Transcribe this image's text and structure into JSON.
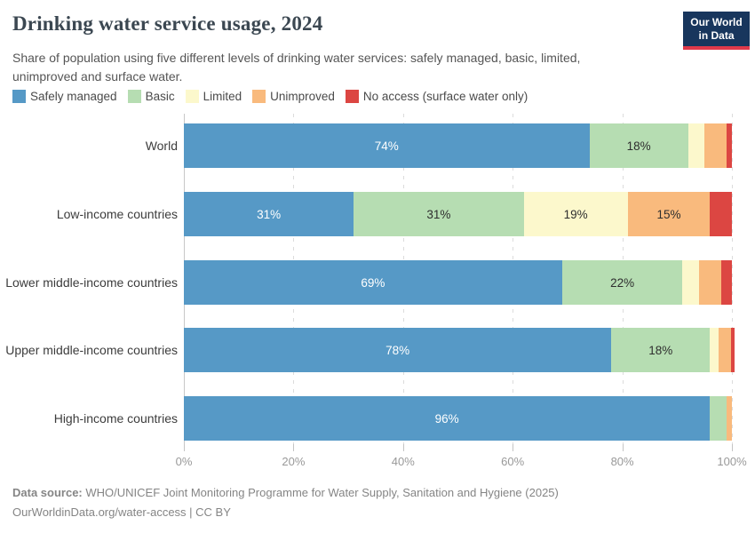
{
  "header": {
    "title": "Drinking water service usage, 2024",
    "subtitle": "Share of population using five different levels of drinking water services: safely managed, basic, limited, unimproved and surface water.",
    "logo": {
      "line1": "Our World",
      "line2": "in Data"
    }
  },
  "colors": {
    "safely_managed": "#5699c6",
    "basic": "#b6ddb2",
    "limited": "#fcf8cc",
    "unimproved": "#f9ba7d",
    "no_access": "#dc4642",
    "logo_bg": "#18365d",
    "logo_stripe": "#e0394a"
  },
  "chart_data": {
    "type": "bar",
    "orientation": "horizontal",
    "stacked": true,
    "categories": [
      "World",
      "Low-income countries",
      "Lower middle-income countries",
      "Upper middle-income countries",
      "High-income countries"
    ],
    "series": [
      {
        "name": "Safely managed",
        "color": "#5699c6",
        "label_color": "#ffffff",
        "values": [
          74,
          31,
          69,
          78,
          96
        ]
      },
      {
        "name": "Basic",
        "color": "#b6ddb2",
        "label_color": "#2e2e2e",
        "values": [
          18,
          31,
          22,
          18,
          3
        ]
      },
      {
        "name": "Limited",
        "color": "#fcf8cc",
        "label_color": "#2e2e2e",
        "values": [
          3,
          19,
          3,
          1.5,
          0
        ]
      },
      {
        "name": "Unimproved",
        "color": "#f9ba7d",
        "label_color": "#2e2e2e",
        "values": [
          4,
          15,
          4,
          2.3,
          1
        ]
      },
      {
        "name": "No access (surface water only)",
        "color": "#dc4642",
        "label_color": "#2e2e2e",
        "values": [
          1,
          4,
          2,
          0.7,
          0
        ]
      }
    ],
    "value_label_suffix": "%",
    "value_label_min": 10,
    "xlim": [
      0,
      100
    ],
    "x_ticks": [
      {
        "value": 0,
        "label": "0%"
      },
      {
        "value": 20,
        "label": "20%"
      },
      {
        "value": 40,
        "label": "40%"
      },
      {
        "value": 60,
        "label": "60%"
      },
      {
        "value": 80,
        "label": "80%"
      },
      {
        "value": 100,
        "label": "100%"
      }
    ],
    "grid": true,
    "legend_position": "top"
  },
  "footer": {
    "source_prefix": "Data source:",
    "source_text": " WHO/UNICEF Joint Monitoring Programme for Water Supply, Sanitation and Hygiene (2025)",
    "license_line": "OurWorldinData.org/water-access | CC BY"
  }
}
